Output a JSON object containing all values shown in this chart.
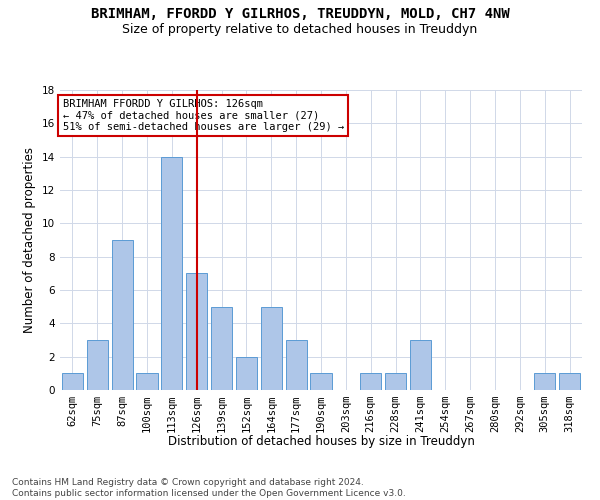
{
  "title1": "BRIMHAM, FFORDD Y GILRHOS, TREUDDYN, MOLD, CH7 4NW",
  "title2": "Size of property relative to detached houses in Treuddyn",
  "xlabel": "Distribution of detached houses by size in Treuddyn",
  "ylabel": "Number of detached properties",
  "categories": [
    "62sqm",
    "75sqm",
    "87sqm",
    "100sqm",
    "113sqm",
    "126sqm",
    "139sqm",
    "152sqm",
    "164sqm",
    "177sqm",
    "190sqm",
    "203sqm",
    "216sqm",
    "228sqm",
    "241sqm",
    "254sqm",
    "267sqm",
    "280sqm",
    "292sqm",
    "305sqm",
    "318sqm"
  ],
  "values": [
    1,
    3,
    9,
    1,
    14,
    7,
    5,
    2,
    5,
    3,
    1,
    0,
    1,
    1,
    3,
    0,
    0,
    0,
    0,
    1,
    1
  ],
  "bar_color": "#aec6e8",
  "bar_edge_color": "#5b9bd5",
  "vline_x": 5,
  "vline_color": "#cc0000",
  "annotation_line1": "BRIMHAM FFORDD Y GILRHOS: 126sqm",
  "annotation_line2": "← 47% of detached houses are smaller (27)",
  "annotation_line3": "51% of semi-detached houses are larger (29) →",
  "annotation_box_color": "#ffffff",
  "annotation_box_edge": "#cc0000",
  "ylim": [
    0,
    18
  ],
  "yticks": [
    0,
    2,
    4,
    6,
    8,
    10,
    12,
    14,
    16,
    18
  ],
  "footer": "Contains HM Land Registry data © Crown copyright and database right 2024.\nContains public sector information licensed under the Open Government Licence v3.0.",
  "bg_color": "#ffffff",
  "grid_color": "#d0d8e8",
  "title1_fontsize": 10,
  "title2_fontsize": 9,
  "xlabel_fontsize": 8.5,
  "ylabel_fontsize": 8.5,
  "tick_fontsize": 7.5,
  "annotation_fontsize": 7.5,
  "footer_fontsize": 6.5
}
